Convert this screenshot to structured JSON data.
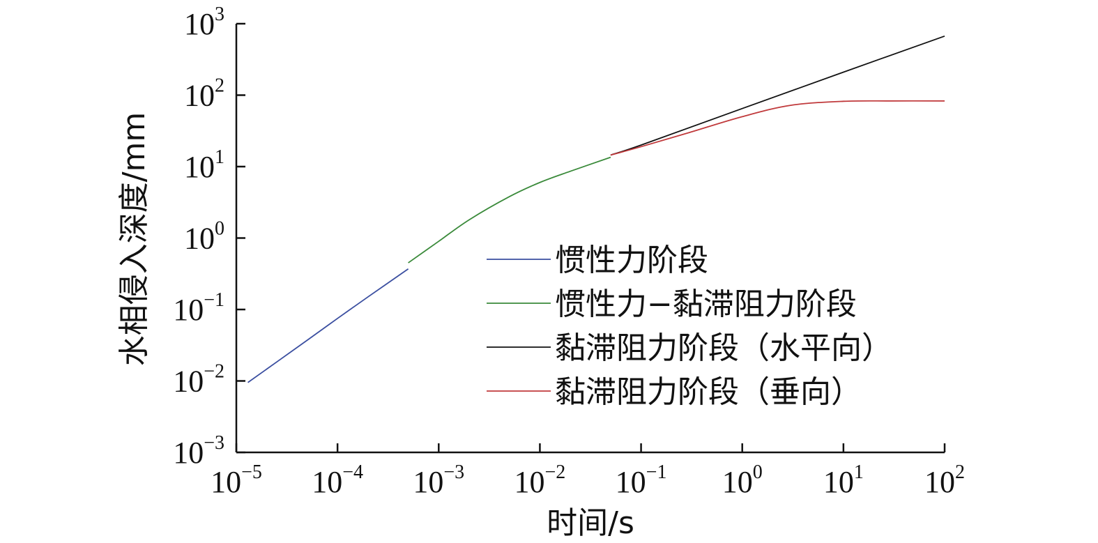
{
  "chart_data": {
    "type": "line",
    "xlabel": "时间/s",
    "ylabel": "水相侵入深度/mm",
    "xscale": "log",
    "yscale": "log",
    "xlim": [
      1e-05,
      100
    ],
    "ylim": [
      0.001,
      1000
    ],
    "grid": false,
    "legend_position": "center-right",
    "x_ticks": [
      {
        "base": "10",
        "exp": "−5",
        "value": 1e-05
      },
      {
        "base": "10",
        "exp": "−4",
        "value": 0.0001
      },
      {
        "base": "10",
        "exp": "−3",
        "value": 0.001
      },
      {
        "base": "10",
        "exp": "−2",
        "value": 0.01
      },
      {
        "base": "10",
        "exp": "−1",
        "value": 0.1
      },
      {
        "base": "10",
        "exp": "0",
        "value": 1
      },
      {
        "base": "10",
        "exp": "1",
        "value": 10
      },
      {
        "base": "10",
        "exp": "2",
        "value": 100
      }
    ],
    "y_ticks": [
      {
        "base": "10",
        "exp": "−3",
        "value": 0.001
      },
      {
        "base": "10",
        "exp": "−2",
        "value": 0.01
      },
      {
        "base": "10",
        "exp": "−1",
        "value": 0.1
      },
      {
        "base": "10",
        "exp": "0",
        "value": 1
      },
      {
        "base": "10",
        "exp": "1",
        "value": 10
      },
      {
        "base": "10",
        "exp": "2",
        "value": 100
      },
      {
        "base": "10",
        "exp": "3",
        "value": 1000
      }
    ],
    "series": [
      {
        "name": "惯性力阶段",
        "color": "#3a4ea0",
        "x": [
          1.3e-05,
          5e-05,
          0.0001,
          0.0002,
          0.0005
        ],
        "y": [
          0.0095,
          0.037,
          0.075,
          0.15,
          0.37
        ]
      },
      {
        "name": "惯性力−黏滞阻力阶段",
        "color": "#3a8a3a",
        "x": [
          0.0005,
          0.001,
          0.002,
          0.005,
          0.01,
          0.02,
          0.05
        ],
        "y": [
          0.45,
          0.9,
          1.8,
          3.8,
          6.0,
          8.6,
          13.5
        ]
      },
      {
        "name": "黏滞阻力阶段（水平向）",
        "color": "#111111",
        "x": [
          0.05,
          0.1,
          1,
          10,
          100
        ],
        "y": [
          14.5,
          20,
          65,
          210,
          670
        ]
      },
      {
        "name": "黏滞阻力阶段（垂向）",
        "color": "#c0393b",
        "x": [
          0.05,
          0.1,
          0.3,
          1,
          3,
          10,
          30,
          100
        ],
        "y": [
          14.5,
          19,
          30,
          50,
          72,
          82,
          83,
          83
        ]
      }
    ]
  }
}
